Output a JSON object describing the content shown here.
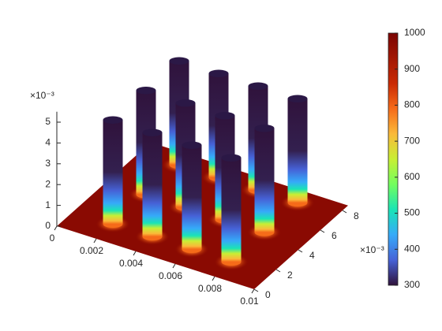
{
  "chart_data": {
    "type": "surface3d",
    "xlim": [
      0,
      0.01
    ],
    "xticks": [
      0,
      0.002,
      0.004,
      0.006,
      0.008,
      0.01
    ],
    "ylim": [
      0,
      0.0085
    ],
    "yticks": [
      0,
      {
        "value": 0.002,
        "label": "2"
      },
      {
        "value": 0.004,
        "label": "4"
      },
      {
        "value": 0.006,
        "label": "6"
      },
      {
        "value": 0.008,
        "label": "8"
      }
    ],
    "y_exponent": "×10⁻³",
    "zlim": [
      0,
      0.0055
    ],
    "zticks": [
      0,
      {
        "value": 0.001,
        "label": "1"
      },
      {
        "value": 0.002,
        "label": "2"
      },
      {
        "value": 0.003,
        "label": "3"
      },
      {
        "value": 0.004,
        "label": "4"
      },
      {
        "value": 0.005,
        "label": "5"
      }
    ],
    "z_exponent": "×10⁻³",
    "colorbar": {
      "lim": [
        300,
        1000
      ],
      "ticks": [
        300,
        400,
        500,
        600,
        700,
        800,
        900,
        1000
      ]
    },
    "pins": {
      "x": [
        0.002,
        0.004,
        0.006,
        0.008,
        0.002,
        0.004,
        0.006,
        0.008,
        0.002,
        0.004,
        0.006,
        0.008
      ],
      "y": [
        0.0015,
        0.0015,
        0.0015,
        0.0015,
        0.0045,
        0.0045,
        0.0045,
        0.0045,
        0.0075,
        0.0075,
        0.0075,
        0.0075
      ],
      "height": 0.005,
      "radius": 0.0005
    }
  }
}
